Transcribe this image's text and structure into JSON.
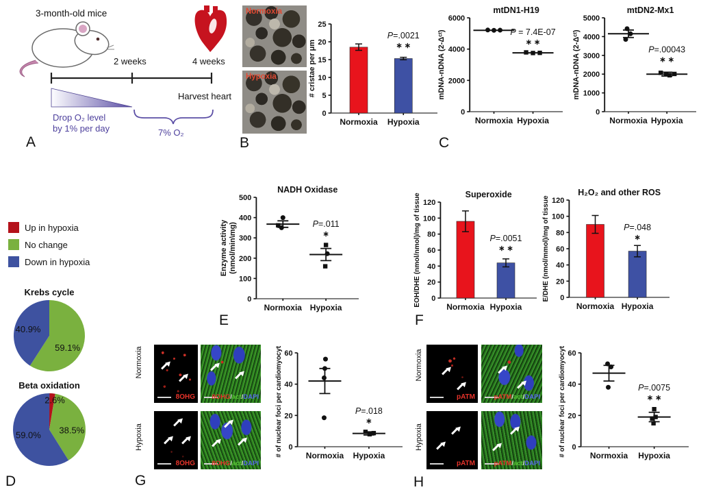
{
  "figure": {
    "panelA": {
      "label": "A",
      "title": "3-month-old mice",
      "week2": "2 weeks",
      "week4": "4 weeks",
      "harvest": "Harvest heart",
      "drop1": "Drop O₂ level",
      "drop2": "by 1% per day",
      "o2": "7% O₂"
    },
    "panelB": {
      "label": "B",
      "img_labels": [
        "Normoxia",
        "Hypoxia"
      ]
    },
    "panelC": {
      "label": "C"
    },
    "panelD": {
      "label": "D",
      "legend": [
        {
          "label": "Up in hypoxia",
          "color": "#b4121b"
        },
        {
          "label": "No change",
          "color": "#7ab13f"
        },
        {
          "label": "Down in hypoxia",
          "color": "#3e52a0"
        }
      ]
    },
    "panelE": {
      "label": "E"
    },
    "panelF": {
      "label": "F"
    },
    "panelG": {
      "label": "G",
      "rows": [
        "Normoxia",
        "Hypoxia"
      ],
      "stain": "8OHG",
      "merge": [
        "8OHG",
        "/",
        "act",
        "/",
        "DAPI"
      ]
    },
    "panelH": {
      "label": "H",
      "rows": [
        "Normoxia",
        "Hypoxia"
      ],
      "stain": "pATM",
      "merge": [
        "pATM",
        "/",
        "act",
        "/",
        "DAPI"
      ]
    }
  },
  "colors": {
    "bar_red": "#e8141c",
    "bar_blue": "#3e51a4",
    "pie_green": "#7ab13f",
    "pie_blue": "#3e52a0",
    "pie_red": "#b4121b",
    "accent_purple": "#4c3f9c"
  },
  "chart_data": [
    {
      "id": "cristae-bar",
      "type": "bar",
      "title": "",
      "ylabel": "# cristae per μm",
      "ylim": [
        0,
        25
      ],
      "ytick_step": 5,
      "categories": [
        "Normoxia",
        "Hypoxia"
      ],
      "values": [
        18.5,
        15.3
      ],
      "errors": [
        0.9,
        0.35
      ],
      "bar_colors": [
        "#e8141c",
        "#3e51a4"
      ],
      "annotation": {
        "text": "P=.0021",
        "stars": "∗ ∗",
        "y": 21
      }
    },
    {
      "id": "mtdn1",
      "type": "scatter",
      "title": "mtDN1-H19",
      "ylabel": "mDNA-nDNA (2-Δᶜᵗ)",
      "ylim": [
        0,
        6000
      ],
      "ytick_step": 2000,
      "mean_half": 30,
      "groups": [
        {
          "label": "Normoxia",
          "mean": 5200,
          "points": [
            {
              "y": 5220,
              "dx": -9,
              "m": "c"
            },
            {
              "y": 5200,
              "dx": 0,
              "m": "c"
            },
            {
              "y": 5210,
              "dx": 9,
              "m": "c"
            }
          ]
        },
        {
          "label": "Hypoxia",
          "mean": 3760,
          "points": [
            {
              "y": 3790,
              "dx": -10,
              "m": "s"
            },
            {
              "y": 3750,
              "dx": 0,
              "m": "s"
            },
            {
              "y": 3760,
              "dx": 10,
              "m": "s"
            }
          ]
        }
      ],
      "annotation": {
        "text": "P = 7.4E-07",
        "stars": "∗ ∗",
        "y": 4900
      }
    },
    {
      "id": "mtdn2",
      "type": "scatter",
      "title": "mtDN2-Mx1",
      "ylabel": "mDNA-nDNA (2-Δᶜᵗ)",
      "ylim": [
        0,
        5000
      ],
      "ytick_step": 1000,
      "mean_half": 30,
      "groups": [
        {
          "label": "Normoxia",
          "mean": 4150,
          "err": [
            3950,
            4350
          ],
          "points": [
            {
              "y": 4420,
              "dx": -2,
              "m": "c"
            },
            {
              "y": 4150,
              "dx": 3,
              "m": "c"
            },
            {
              "y": 3850,
              "dx": -4,
              "m": "c"
            }
          ]
        },
        {
          "label": "Hypoxia",
          "mean": 2000,
          "err": [
            1900,
            2100
          ],
          "points": [
            {
              "y": 2070,
              "dx": -9,
              "m": "s"
            },
            {
              "y": 2000,
              "dx": -1,
              "m": "s"
            },
            {
              "y": 1940,
              "dx": 4,
              "m": "s"
            },
            {
              "y": 2010,
              "dx": 11,
              "m": "s"
            }
          ]
        }
      ],
      "annotation": {
        "text": "P=.00043",
        "stars": "∗ ∗",
        "y": 3150
      }
    },
    {
      "id": "krebs-pie",
      "type": "pie",
      "title": "Krebs cycle",
      "r": 52,
      "slices": [
        {
          "label": "No change",
          "pct": 59.1,
          "pct_label": "59.1%",
          "color": "#7ab13f",
          "label_r": 0.62,
          "label_da": 18
        },
        {
          "label": "Down in hypoxia",
          "pct": 40.9,
          "pct_label": "40.9%",
          "color": "#3e52a0",
          "label_r": 0.62,
          "label_da": 0
        }
      ]
    },
    {
      "id": "beta-pie",
      "type": "pie",
      "title": "Beta oxidation",
      "r": 53,
      "slices": [
        {
          "label": "Up in hypoxia",
          "pct": 2.6,
          "pct_label": "2.6%",
          "color": "#b4121b",
          "label_r": 0.82,
          "label_da": 6
        },
        {
          "label": "No change",
          "pct": 38.5,
          "pct_label": "38.5%",
          "color": "#7ab13f",
          "label_r": 0.62,
          "label_da": 14
        },
        {
          "label": "Down in hypoxia",
          "pct": 59.0,
          "pct_label": "59.0%",
          "color": "#3e52a0",
          "label_r": 0.6,
          "label_da": 0
        }
      ]
    },
    {
      "id": "nadh-oxidase",
      "type": "scatter",
      "title": "NADH Oxidase",
      "ylabel": "Enzyme activity\n(nmol/min\\mg)",
      "ylim": [
        0,
        500
      ],
      "ytick_step": 100,
      "groups": [
        {
          "label": "Normoxia",
          "mean": 368,
          "err": [
            352,
            384
          ],
          "points": [
            {
              "y": 400,
              "dx": 0,
              "m": "c"
            },
            {
              "y": 362,
              "dx": -7,
              "m": "s"
            },
            {
              "y": 350,
              "dx": -2,
              "m": "c"
            }
          ]
        },
        {
          "label": "Hypoxia",
          "mean": 218,
          "err": [
            188,
            248
          ],
          "points": [
            {
              "y": 265,
              "dx": 0,
              "m": "s"
            },
            {
              "y": 222,
              "dx": 2,
              "m": "c"
            },
            {
              "y": 160,
              "dx": -1,
              "m": "s"
            }
          ]
        }
      ],
      "annotation": {
        "text": "P=.011",
        "stars": "∗",
        "y": 355
      }
    },
    {
      "id": "superoxide",
      "type": "bar",
      "title": "Superoxide",
      "ylabel": "EOH/DHE (nmol/nmol)/mg of tissue",
      "ylim": [
        0,
        120
      ],
      "ytick_step": 20,
      "categories": [
        "Normoxia",
        "Hypoxia"
      ],
      "values": [
        96,
        44
      ],
      "errors": [
        13,
        5
      ],
      "bar_colors": [
        "#e8141c",
        "#3e51a4"
      ],
      "annotation": {
        "text": "P=.0051",
        "stars": "∗ ∗",
        "y": 71
      }
    },
    {
      "id": "h2o2-ros",
      "type": "bar",
      "title": "H₂O₂ and other ROS",
      "ylabel": "E/DHE (nmol/mmol)/mg of tissue",
      "ylim": [
        0,
        120
      ],
      "ytick_step": 20,
      "categories": [
        "Normoxia",
        "Hypoxia"
      ],
      "values": [
        90,
        57
      ],
      "errors": [
        11,
        7
      ],
      "bar_colors": [
        "#e8141c",
        "#3e51a4"
      ],
      "annotation": {
        "text": "P=.048",
        "stars": "∗",
        "y": 83
      }
    },
    {
      "id": "8ohg-foci",
      "type": "scatter",
      "title": "",
      "ylabel": "# of nuclear foci per cardiomyocyte",
      "ylim": [
        0,
        60
      ],
      "ytick_step": 20,
      "groups": [
        {
          "label": "Normoxia",
          "mean": 42,
          "err": [
            34,
            50
          ],
          "points": [
            {
              "y": 56,
              "dx": 1,
              "m": "c"
            },
            {
              "y": 50,
              "dx": 0,
              "m": "c"
            },
            {
              "y": 44,
              "dx": -1,
              "m": "c"
            },
            {
              "y": 18.5,
              "dx": -1,
              "m": "c"
            }
          ]
        },
        {
          "label": "Hypoxia",
          "mean": 8.5,
          "err": [
            7.5,
            9.5
          ],
          "points": [
            {
              "y": 9.5,
              "dx": -5,
              "m": "s"
            },
            {
              "y": 8,
              "dx": 1,
              "m": "s"
            },
            {
              "y": 8.7,
              "dx": 7,
              "m": "s"
            }
          ]
        }
      ],
      "annotation": {
        "text": "P=.018",
        "stars": "∗",
        "y": 21
      }
    },
    {
      "id": "patm-foci",
      "type": "scatter",
      "title": "",
      "ylabel": "# of nuclear foci per cardiomyocyte",
      "ylim": [
        0,
        60
      ],
      "ytick_step": 20,
      "groups": [
        {
          "label": "Normoxia",
          "mean": 47,
          "err": [
            42,
            52
          ],
          "points": [
            {
              "y": 53,
              "dx": -2,
              "m": "c"
            },
            {
              "y": 51,
              "dx": 3,
              "m": "c"
            },
            {
              "y": 38,
              "dx": -1,
              "m": "c"
            }
          ]
        },
        {
          "label": "Hypoxia",
          "mean": 19,
          "err": [
            16,
            22
          ],
          "points": [
            {
              "y": 24,
              "dx": 0,
              "m": "s"
            },
            {
              "y": 19,
              "dx": 2,
              "m": "s"
            },
            {
              "y": 18,
              "dx": -3,
              "m": "s"
            },
            {
              "y": 15,
              "dx": -1,
              "m": "s"
            }
          ]
        }
      ],
      "annotation": {
        "text": "P=.0075",
        "stars": "∗ ∗",
        "y": 36
      }
    }
  ]
}
